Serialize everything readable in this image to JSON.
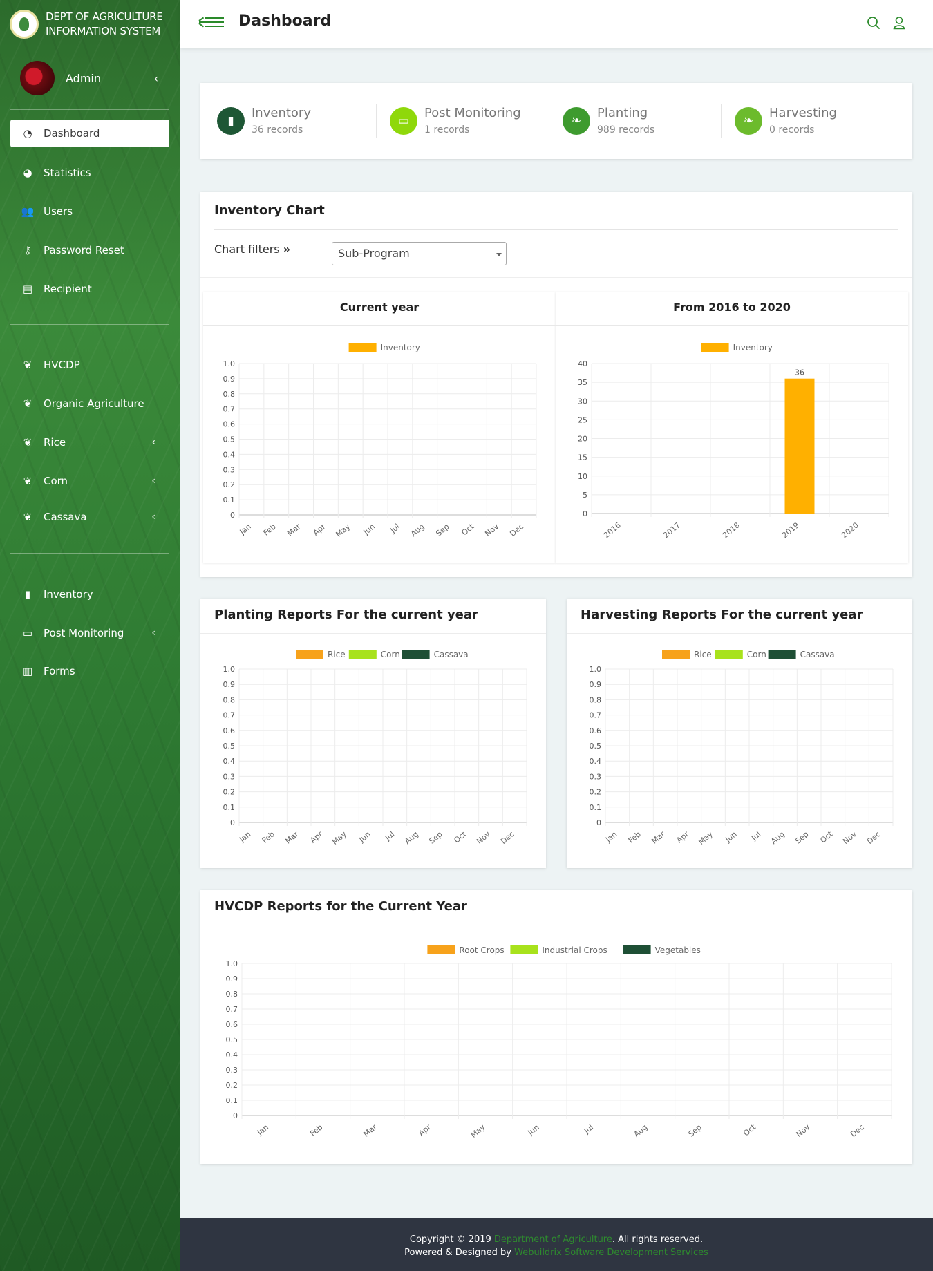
{
  "brand": {
    "line1": "DEPT OF AGRICULTURE",
    "line2": "INFORMATION SYSTEM"
  },
  "user": {
    "name": "Admin"
  },
  "nav": [
    {
      "label": "Dashboard",
      "icon": "dashboard-icon",
      "active": true
    },
    {
      "label": "Statistics",
      "icon": "pie-chart-icon"
    },
    {
      "label": "Users",
      "icon": "users-icon"
    },
    {
      "label": "Password Reset",
      "icon": "key-icon"
    },
    {
      "label": "Recipient",
      "icon": "id-card-icon"
    },
    {
      "label": "HVCDP",
      "icon": "seedling-icon"
    },
    {
      "label": "Organic Agriculture",
      "icon": "seedling-icon"
    },
    {
      "label": "Rice",
      "icon": "seedling-icon",
      "expandable": true
    },
    {
      "label": "Corn",
      "icon": "seedling-icon",
      "expandable": true
    },
    {
      "label": "Cassava",
      "icon": "seedling-icon",
      "expandable": true
    },
    {
      "label": "Inventory",
      "icon": "clipboard-icon"
    },
    {
      "label": "Post Monitoring",
      "icon": "monitor-icon",
      "expandable": true
    },
    {
      "label": "Forms",
      "icon": "bar-chart-icon"
    }
  ],
  "header": {
    "title": "Dashboard"
  },
  "stats": [
    {
      "title": "Inventory",
      "sub": "36 records",
      "color": "#1e5735",
      "icon": "clipboard-icon"
    },
    {
      "title": "Post Monitoring",
      "sub": "1 records",
      "color": "#8fd80b",
      "icon": "monitor-icon"
    },
    {
      "title": "Planting",
      "sub": "989 records",
      "color": "#3e9b2f",
      "icon": "leaf-icon"
    },
    {
      "title": "Harvesting",
      "sub": "0 records",
      "color": "#6cbb2c",
      "icon": "leaf-icon"
    }
  ],
  "inventory_card": {
    "title": "Inventory Chart",
    "filter_label": "Chart filters",
    "filter_value": "Sub-Program",
    "left_title": "Current year",
    "right_title": "From 2016 to 2020"
  },
  "planting_title": "Planting Reports For the current year",
  "harvesting_title": "Harvesting Reports For the current year",
  "hvcdp_title": "HVCDP Reports for the Current Year",
  "footer": {
    "copyright_pre": "Copyright © 2019 ",
    "copyright_link": "Department of Agriculture",
    "copyright_post": ". All rights reserved.",
    "powered_pre": "Powered & Designed by ",
    "powered_link": "Webuildrix Software Development Services"
  },
  "chart_data": [
    {
      "id": "inv_current",
      "type": "bar",
      "categories": [
        "Jan",
        "Feb",
        "Mar",
        "Apr",
        "May",
        "Jun",
        "Jul",
        "Aug",
        "Sep",
        "Oct",
        "Nov",
        "Dec"
      ],
      "series": [
        {
          "name": "Inventory",
          "color": "#ffb000",
          "values": [
            0,
            0,
            0,
            0,
            0,
            0,
            0,
            0,
            0,
            0,
            0,
            0
          ]
        }
      ],
      "ylim": [
        0,
        1.0
      ],
      "yticks": [
        "1.0",
        "0.9",
        "0.8",
        "0.7",
        "0.6",
        "0.5",
        "0.4",
        "0.3",
        "0.2",
        "0.1",
        "0"
      ],
      "legend": "top"
    },
    {
      "id": "inv_range",
      "type": "bar",
      "categories": [
        "2016",
        "2017",
        "2018",
        "2019",
        "2020"
      ],
      "series": [
        {
          "name": "Inventory",
          "color": "#ffb000",
          "values": [
            0,
            0,
            0,
            36,
            0
          ]
        }
      ],
      "data_labels": [
        "",
        "",
        "",
        "36",
        ""
      ],
      "ylim": [
        0,
        40
      ],
      "yticks": [
        "40",
        "35",
        "30",
        "25",
        "20",
        "15",
        "10",
        "5",
        "0"
      ],
      "legend": "top"
    },
    {
      "id": "planting",
      "type": "bar",
      "categories": [
        "Jan",
        "Feb",
        "Mar",
        "Apr",
        "May",
        "Jun",
        "Jul",
        "Aug",
        "Sep",
        "Oct",
        "Nov",
        "Dec"
      ],
      "series": [
        {
          "name": "Rice",
          "color": "#f7a21b",
          "values": [
            0,
            0,
            0,
            0,
            0,
            0,
            0,
            0,
            0,
            0,
            0,
            0
          ]
        },
        {
          "name": "Corn",
          "color": "#a8e21c",
          "values": [
            0,
            0,
            0,
            0,
            0,
            0,
            0,
            0,
            0,
            0,
            0,
            0
          ]
        },
        {
          "name": "Cassava",
          "color": "#1e4f35",
          "values": [
            0,
            0,
            0,
            0,
            0,
            0,
            0,
            0,
            0,
            0,
            0,
            0
          ]
        }
      ],
      "ylim": [
        0,
        1.0
      ],
      "yticks": [
        "1.0",
        "0.9",
        "0.8",
        "0.7",
        "0.6",
        "0.5",
        "0.4",
        "0.3",
        "0.2",
        "0.1",
        "0"
      ],
      "legend": "top"
    },
    {
      "id": "harvesting",
      "type": "bar",
      "categories": [
        "Jan",
        "Feb",
        "Mar",
        "Apr",
        "May",
        "Jun",
        "Jul",
        "Aug",
        "Sep",
        "Oct",
        "Nov",
        "Dec"
      ],
      "series": [
        {
          "name": "Rice",
          "color": "#f7a21b",
          "values": [
            0,
            0,
            0,
            0,
            0,
            0,
            0,
            0,
            0,
            0,
            0,
            0
          ]
        },
        {
          "name": "Corn",
          "color": "#a8e21c",
          "values": [
            0,
            0,
            0,
            0,
            0,
            0,
            0,
            0,
            0,
            0,
            0,
            0
          ]
        },
        {
          "name": "Cassava",
          "color": "#1e4f35",
          "values": [
            0,
            0,
            0,
            0,
            0,
            0,
            0,
            0,
            0,
            0,
            0,
            0
          ]
        }
      ],
      "ylim": [
        0,
        1.0
      ],
      "yticks": [
        "1.0",
        "0.9",
        "0.8",
        "0.7",
        "0.6",
        "0.5",
        "0.4",
        "0.3",
        "0.2",
        "0.1",
        "0"
      ],
      "legend": "top"
    },
    {
      "id": "hvcdp",
      "type": "bar",
      "categories": [
        "Jan",
        "Feb",
        "Mar",
        "Apr",
        "May",
        "Jun",
        "Jul",
        "Aug",
        "Sep",
        "Oct",
        "Nov",
        "Dec"
      ],
      "series": [
        {
          "name": "Root Crops",
          "color": "#f7a21b",
          "values": [
            0,
            0,
            0,
            0,
            0,
            0,
            0,
            0,
            0,
            0,
            0,
            0
          ]
        },
        {
          "name": "Industrial Crops",
          "color": "#a8e21c",
          "values": [
            0,
            0,
            0,
            0,
            0,
            0,
            0,
            0,
            0,
            0,
            0,
            0
          ]
        },
        {
          "name": "Vegetables",
          "color": "#1e4f35",
          "values": [
            0,
            0,
            0,
            0,
            0,
            0,
            0,
            0,
            0,
            0,
            0,
            0
          ]
        }
      ],
      "ylim": [
        0,
        1.0
      ],
      "yticks": [
        "1.0",
        "0.9",
        "0.8",
        "0.7",
        "0.6",
        "0.5",
        "0.4",
        "0.3",
        "0.2",
        "0.1",
        "0"
      ],
      "legend": "top"
    }
  ]
}
